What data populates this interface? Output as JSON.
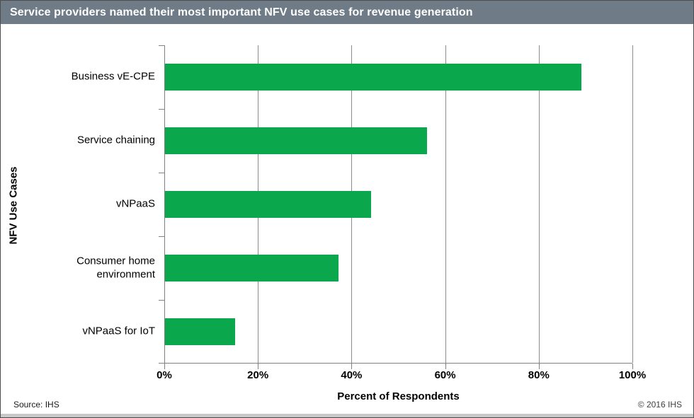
{
  "title_bar": {
    "text": "Service providers named their most important NFV use cases for revenue generation",
    "bg_color": "#6f7b87",
    "text_color": "#ffffff"
  },
  "chart_data": {
    "type": "bar",
    "orientation": "horizontal",
    "categories": [
      "Business vE-CPE",
      "Service chaining",
      "vNPaaS",
      "Consumer home environment",
      "vNPaaS for IoT"
    ],
    "values": [
      89,
      56,
      44,
      37,
      15
    ],
    "xlabel": "Percent of Respondents",
    "ylabel": "NFV Use Cases",
    "xlim": [
      0,
      100
    ],
    "xtick_labels": [
      "0%",
      "20%",
      "40%",
      "60%",
      "80%",
      "100%"
    ],
    "xtick_values": [
      0,
      20,
      40,
      60,
      80,
      100
    ],
    "grid": true,
    "legend": "none",
    "bar_color": "#0aa74d",
    "axis_color": "#808080",
    "gridline_color": "#8c8c8c"
  },
  "footer": {
    "source": "Source: IHS",
    "copyright": "© 2016 IHS"
  }
}
